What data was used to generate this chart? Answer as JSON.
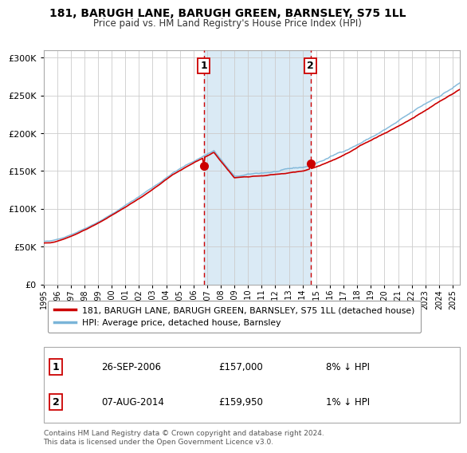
{
  "title": "181, BARUGH LANE, BARUGH GREEN, BARNSLEY, S75 1LL",
  "subtitle": "Price paid vs. HM Land Registry's House Price Index (HPI)",
  "legend_line1": "181, BARUGH LANE, BARUGH GREEN, BARNSLEY, S75 1LL (detached house)",
  "legend_line2": "HPI: Average price, detached house, Barnsley",
  "sale1_date": "26-SEP-2006",
  "sale1_price": "£157,000",
  "sale1_hpi": "8% ↓ HPI",
  "sale2_date": "07-AUG-2014",
  "sale2_price": "£159,950",
  "sale2_hpi": "1% ↓ HPI",
  "footer": "Contains HM Land Registry data © Crown copyright and database right 2024.\nThis data is licensed under the Open Government Licence v3.0.",
  "sale1_year": 2006.75,
  "sale2_year": 2014.59,
  "sale1_val": 157000,
  "sale2_val": 159950,
  "hpi_color": "#7ab4d8",
  "price_color": "#cc0000",
  "shade_color": "#daeaf5",
  "vline_color": "#cc0000",
  "background_color": "#ffffff",
  "grid_color": "#cccccc",
  "ylim": [
    0,
    310000
  ],
  "xlim_start": 1995.0,
  "xlim_end": 2025.5,
  "yticks": [
    0,
    50000,
    100000,
    150000,
    200000,
    250000,
    300000
  ],
  "ylabel_map": {
    "0": "£0",
    "50000": "£50K",
    "100000": "£100K",
    "150000": "£150K",
    "200000": "£200K",
    "250000": "£250K",
    "300000": "£300K"
  }
}
